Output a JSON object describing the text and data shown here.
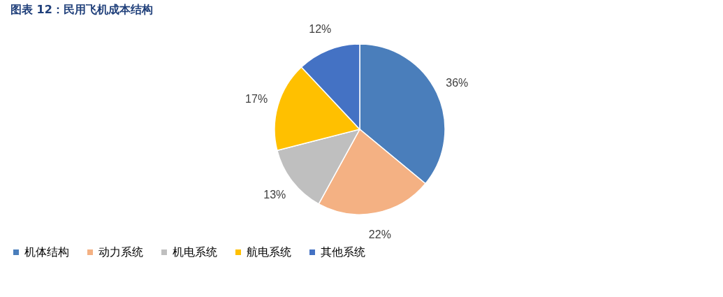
{
  "chart_data": {
    "type": "pie",
    "title": "图表 12：民用飞机成本结构",
    "categories": [
      "机体结构",
      "动力系统",
      "机电系统",
      "航电系统",
      "其他系统"
    ],
    "values": [
      36,
      22,
      13,
      17,
      12
    ],
    "colors": [
      "#4a7ebb",
      "#f4b183",
      "#bfbfbf",
      "#ffc000",
      "#4472c4"
    ],
    "value_labels": [
      "36%",
      "22%",
      "13%",
      "17%",
      "12%"
    ],
    "legend": "bottom"
  }
}
